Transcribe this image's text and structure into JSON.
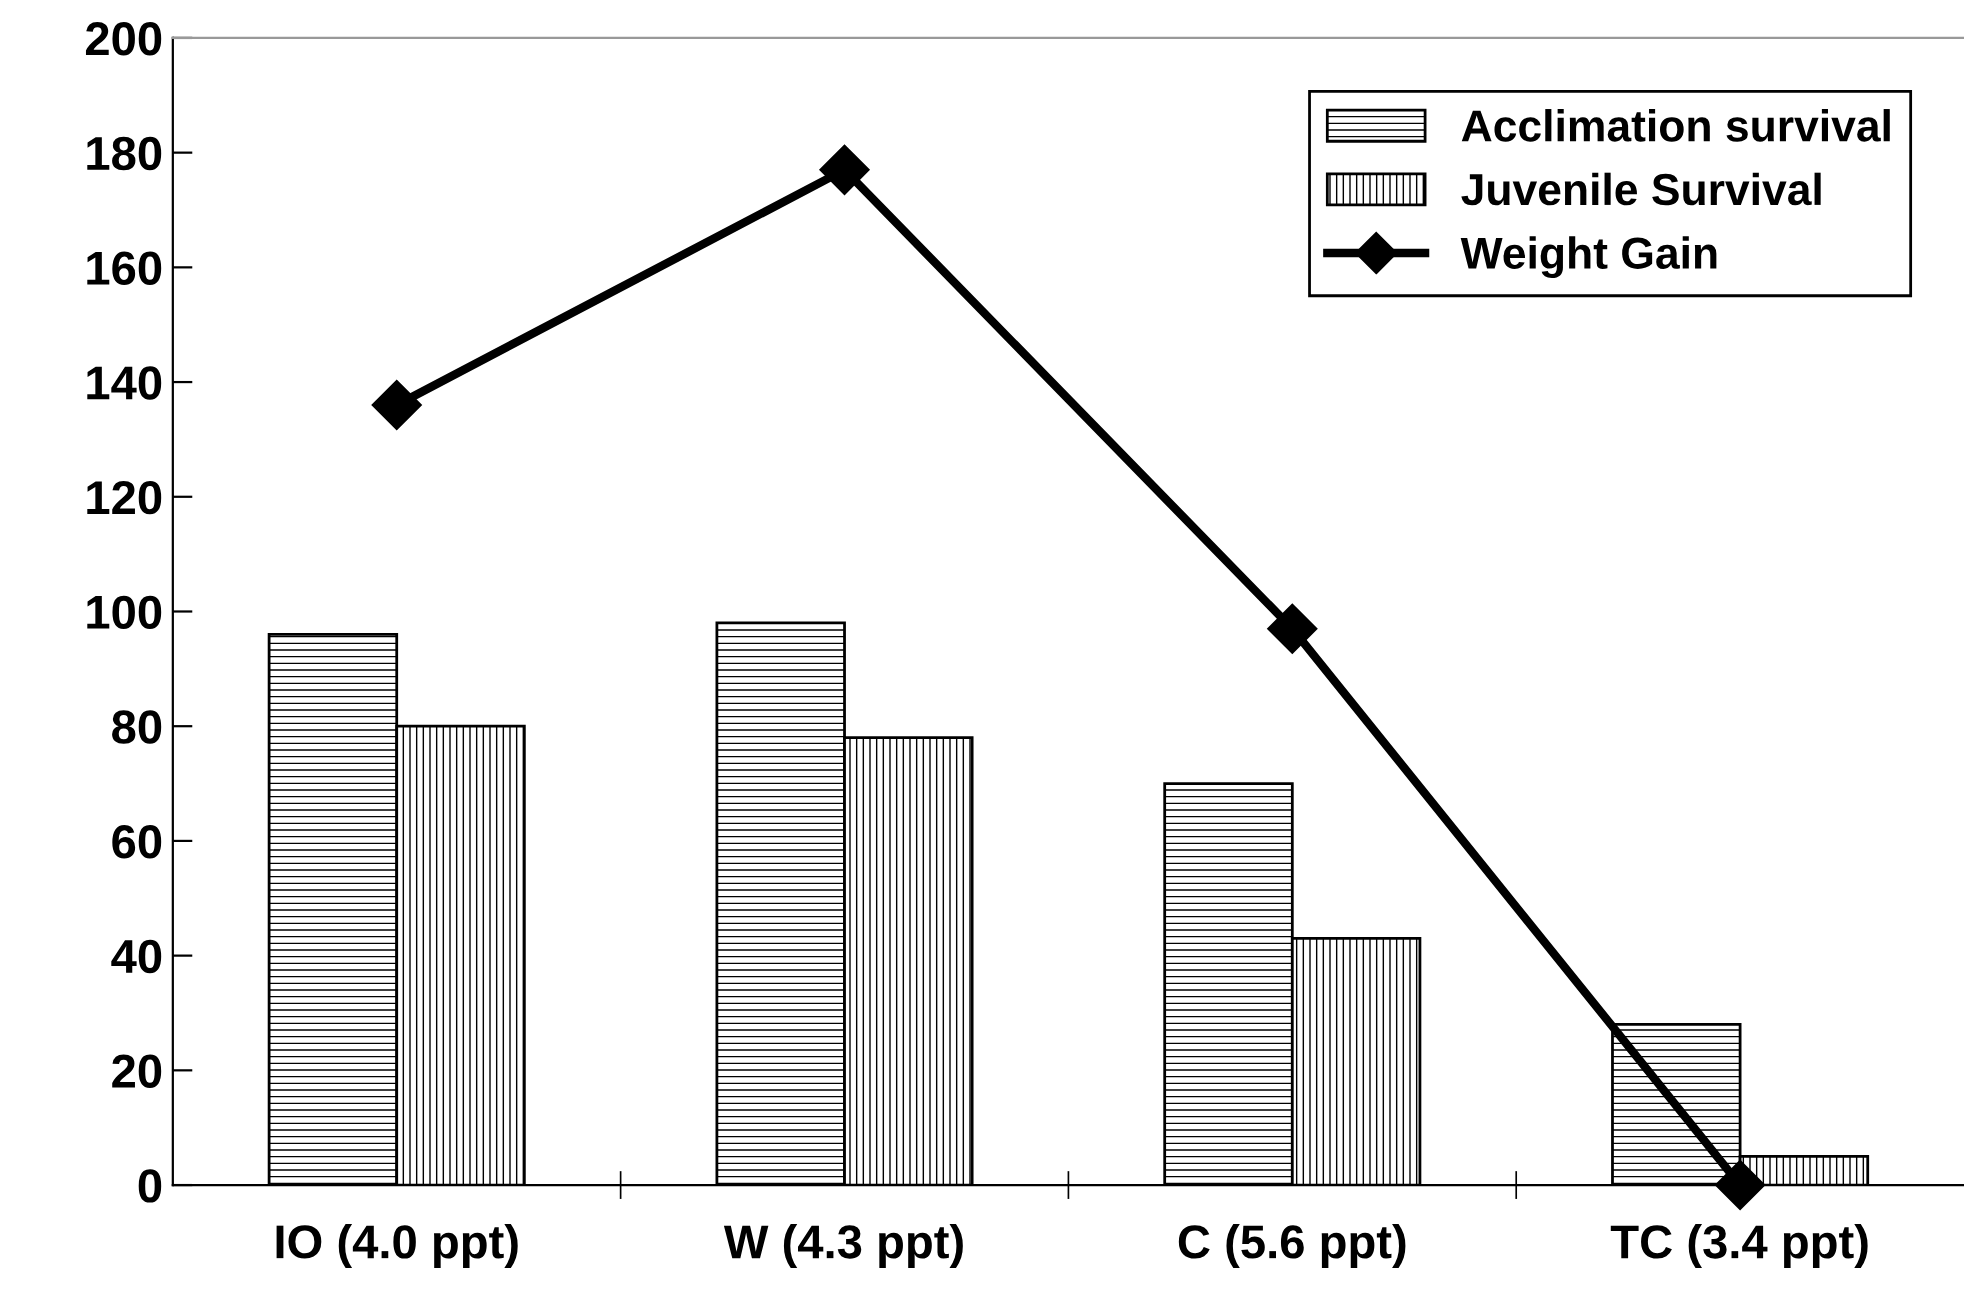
{
  "chart_data": {
    "type": "bar",
    "categories": [
      "IO (4.0 ppt)",
      "W (4.3 ppt)",
      "C (5.6 ppt)",
      "TC (3.4 ppt)"
    ],
    "series": [
      {
        "name": "Acclimation survival",
        "color": "#000000",
        "values": [
          96,
          98,
          70,
          28
        ]
      },
      {
        "name": "Juvenile Survival",
        "color": "#000000",
        "values": [
          80,
          78,
          43,
          5
        ]
      },
      {
        "name": "Weight Gain",
        "type": "line",
        "color": "#000000",
        "marker": "diamond",
        "values": [
          136,
          177,
          97,
          0
        ]
      }
    ],
    "ylim": [
      0,
      200
    ],
    "yticks": [
      0,
      20,
      40,
      60,
      80,
      100,
      120,
      140,
      160,
      180,
      200
    ],
    "grid": false,
    "legend": "top right"
  }
}
